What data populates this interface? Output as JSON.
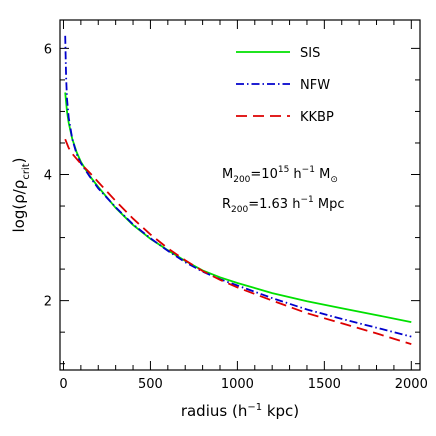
{
  "chart_data": {
    "type": "line",
    "xlabel": "radius (h",
    "xlabel_sup": "−1",
    "xlabel_tail": " kpc)",
    "ylabel": "log(ρ/ρ",
    "ylabel_sub": "crit",
    "ylabel_tail": ")",
    "xlim": [
      -20,
      2050
    ],
    "ylim": [
      0.9,
      6.45
    ],
    "xticks_major": [
      0,
      500,
      1000,
      1500,
      2000
    ],
    "xticks_major_labels": [
      "0",
      "500",
      "1000",
      "1500",
      "2000"
    ],
    "xtick_minor_step": 100,
    "yticks_major": [
      2,
      4,
      6
    ],
    "yticks_major_labels": [
      "2",
      "4",
      "6"
    ],
    "ytick_minor_step": 0.5,
    "grid": false,
    "legend_position": "top-right",
    "series": [
      {
        "name": "SIS",
        "color": "#00e000",
        "dash": "solid",
        "x": [
          10,
          20,
          30,
          50,
          75,
          100,
          150,
          200,
          300,
          400,
          500,
          600,
          700,
          800,
          900,
          1000,
          1200,
          1400,
          1600,
          1800,
          2000
        ],
        "y": [
          5.3,
          5.0,
          4.82,
          4.57,
          4.36,
          4.2,
          3.98,
          3.8,
          3.47,
          3.2,
          2.98,
          2.8,
          2.63,
          2.48,
          2.37,
          2.28,
          2.12,
          1.99,
          1.88,
          1.77,
          1.66
        ]
      },
      {
        "name": "NFW",
        "color": "#0000cc",
        "dash": "dashdot",
        "x": [
          10,
          15,
          20,
          30,
          50,
          75,
          100,
          150,
          200,
          300,
          400,
          500,
          600,
          700,
          800,
          900,
          1000,
          1200,
          1400,
          1600,
          1800,
          2000
        ],
        "y": [
          6.2,
          5.55,
          5.2,
          4.9,
          4.57,
          4.33,
          4.18,
          3.97,
          3.78,
          3.48,
          3.21,
          2.99,
          2.79,
          2.61,
          2.46,
          2.34,
          2.24,
          2.04,
          1.86,
          1.71,
          1.57,
          1.43
        ]
      },
      {
        "name": "KKBP",
        "color": "#dd0000",
        "dash": "dashed",
        "x": [
          10,
          30,
          50,
          75,
          100,
          150,
          200,
          300,
          400,
          500,
          600,
          700,
          800,
          900,
          1000,
          1200,
          1400,
          1600,
          1800,
          2000
        ],
        "y": [
          4.56,
          4.42,
          4.33,
          4.25,
          4.17,
          4.03,
          3.88,
          3.58,
          3.3,
          3.05,
          2.83,
          2.64,
          2.47,
          2.33,
          2.21,
          2.0,
          1.8,
          1.64,
          1.48,
          1.31
        ]
      }
    ],
    "annotations": {
      "m200": {
        "prefix": "M",
        "sub": "200",
        "mid": "=10",
        "sup": "15",
        "unit": " h",
        "unit_sup": "−1",
        "tail": " M",
        "tail_sub": "⊙"
      },
      "r200": {
        "prefix": "R",
        "sub": "200",
        "mid": "=1.63 h",
        "sup": "−1",
        "tail": " Mpc"
      }
    }
  }
}
